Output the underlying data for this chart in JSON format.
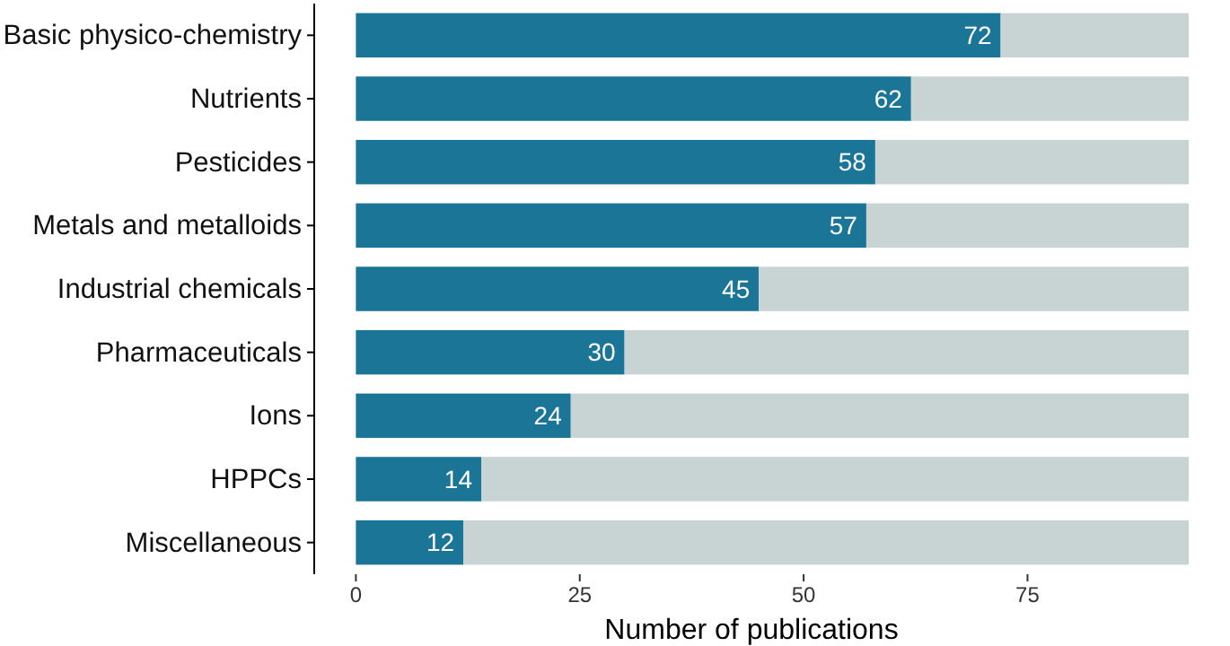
{
  "chart_data": {
    "type": "bar",
    "orientation": "horizontal",
    "stacked": true,
    "xlabel": "Number of publications",
    "categories": [
      "Basic physico-chemistry",
      "Nutrients",
      "Pesticides",
      "Metals and metalloids",
      "Industrial chemicals",
      "Pharmaceuticals",
      "Ions",
      "HPPCs",
      "Miscellaneous"
    ],
    "series": [
      {
        "color": "#1b7597",
        "values": [
          72,
          62,
          58,
          57,
          45,
          30,
          24,
          14,
          12
        ],
        "value_labels": [
          "72",
          "62",
          "58",
          "57",
          "45",
          "30",
          "24",
          "14",
          "12"
        ]
      },
      {
        "color": "#c8d3d3",
        "values": [
          21,
          31,
          35,
          36,
          48,
          63,
          69,
          79,
          81
        ]
      }
    ],
    "xlim": [
      -4.65,
      93
    ],
    "xticks": [
      0,
      25,
      50,
      75
    ]
  }
}
